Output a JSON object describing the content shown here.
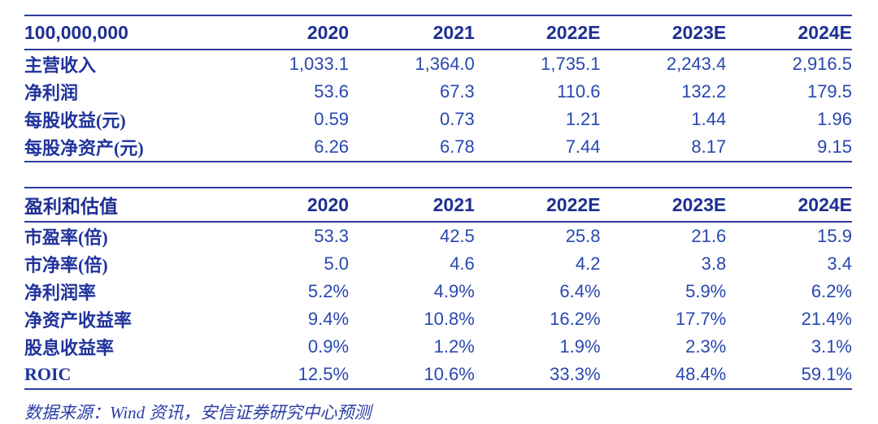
{
  "colors": {
    "header_text": "#1e2f92",
    "label_text": "#20339c",
    "value_text": "#2847b0",
    "rule_line": "#2c3ca0",
    "footer_text": "#2c3ea6",
    "background": "#ffffff"
  },
  "table1": {
    "unit_label": "100,000,000",
    "columns": [
      "2020",
      "2021",
      "2022E",
      "2023E",
      "2024E"
    ],
    "rows": [
      {
        "label": "主营收入",
        "values": [
          "1,033.1",
          "1,364.0",
          "1,735.1",
          "2,243.4",
          "2,916.5"
        ]
      },
      {
        "label": "净利润",
        "values": [
          "53.6",
          "67.3",
          "110.6",
          "132.2",
          "179.5"
        ]
      },
      {
        "label": "每股收益(元)",
        "values": [
          "0.59",
          "0.73",
          "1.21",
          "1.44",
          "1.96"
        ]
      },
      {
        "label": "每股净资产(元)",
        "values": [
          "6.26",
          "6.78",
          "7.44",
          "8.17",
          "9.15"
        ]
      }
    ]
  },
  "table2": {
    "title": "盈利和估值",
    "columns": [
      "2020",
      "2021",
      "2022E",
      "2023E",
      "2024E"
    ],
    "rows": [
      {
        "label": "市盈率(倍)",
        "values": [
          "53.3",
          "42.5",
          "25.8",
          "21.6",
          "15.9"
        ]
      },
      {
        "label": "市净率(倍)",
        "values": [
          "5.0",
          "4.6",
          "4.2",
          "3.8",
          "3.4"
        ]
      },
      {
        "label": "净利润率",
        "values": [
          "5.2%",
          "4.9%",
          "6.4%",
          "5.9%",
          "6.2%"
        ]
      },
      {
        "label": "净资产收益率",
        "values": [
          "9.4%",
          "10.8%",
          "16.2%",
          "17.7%",
          "21.4%"
        ]
      },
      {
        "label": "股息收益率",
        "values": [
          "0.9%",
          "1.2%",
          "1.9%",
          "2.3%",
          "3.1%"
        ]
      },
      {
        "label": "ROIC",
        "values": [
          "12.5%",
          "10.6%",
          "33.3%",
          "48.4%",
          "59.1%"
        ]
      }
    ]
  },
  "footer": {
    "source_note": "数据来源：Wind 资讯，安信证券研究中心预测"
  }
}
